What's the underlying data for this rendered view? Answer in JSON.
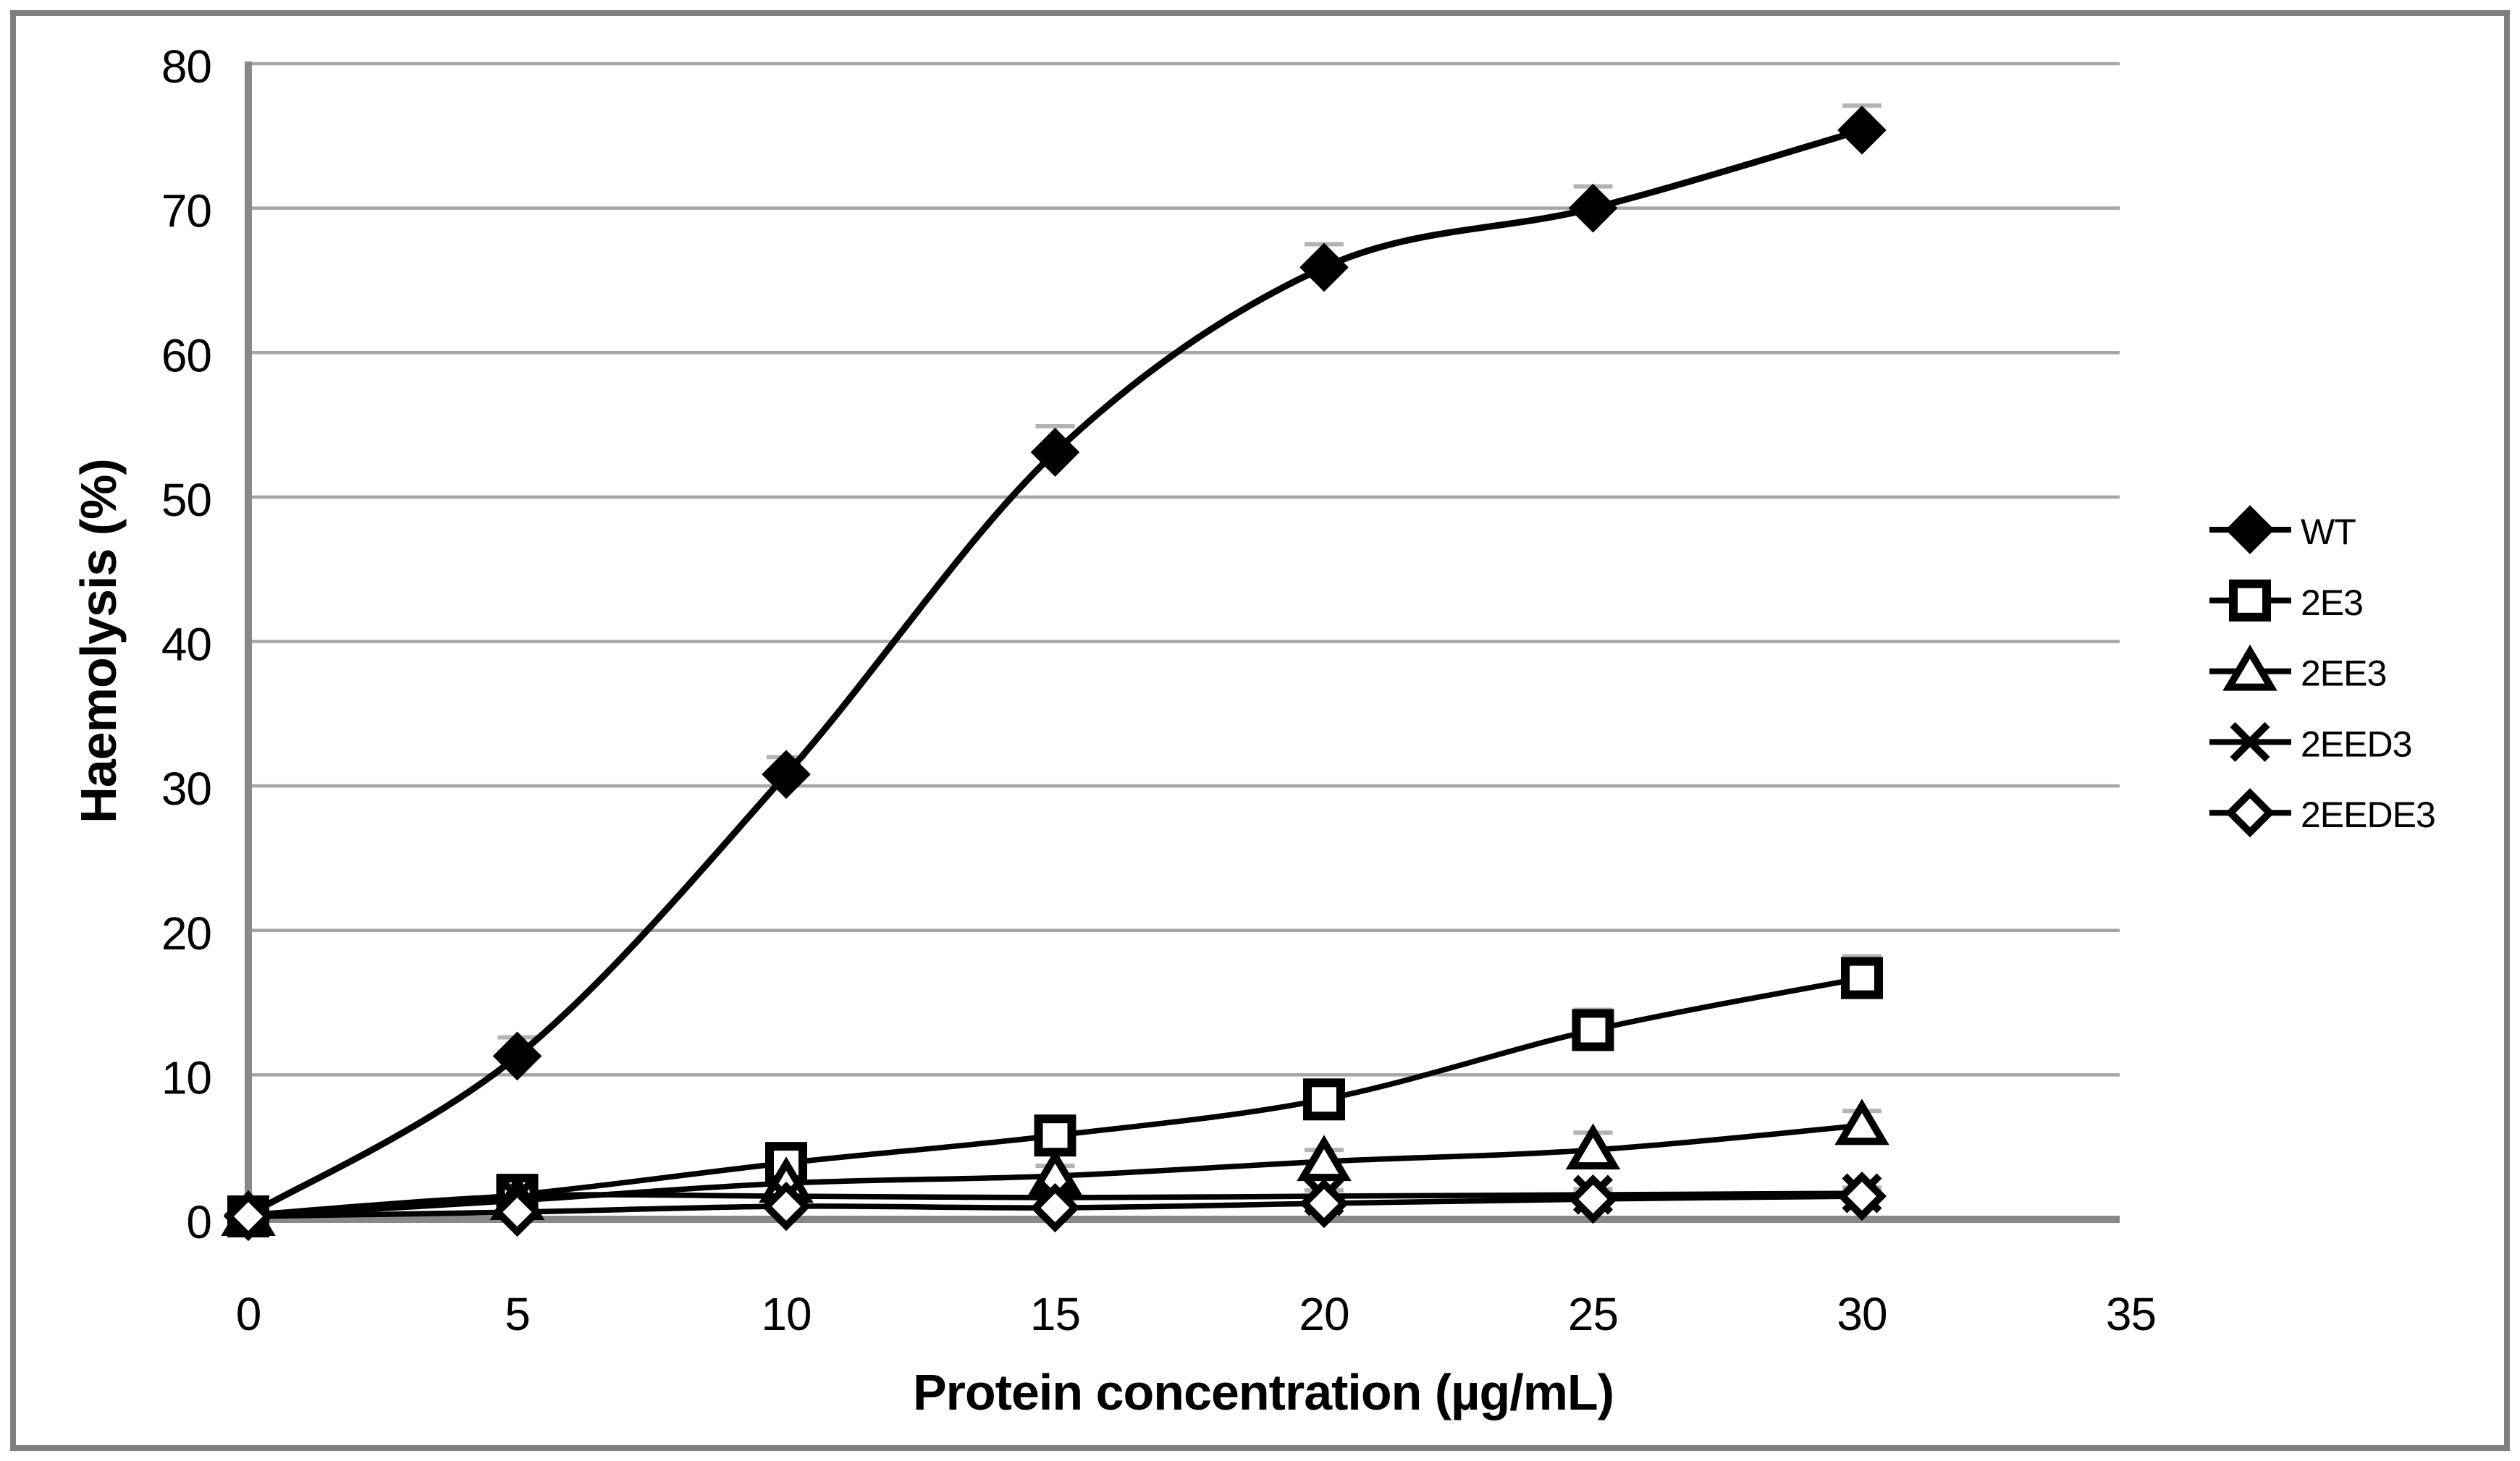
{
  "figure": {
    "background": "#ffffff",
    "border_color": "#7f7f7f"
  },
  "chart_data": {
    "type": "line",
    "title": "",
    "xlabel": "Protein concentration (µg/mL)",
    "ylabel": "Haemolysis (%)",
    "xlim": [
      0,
      35
    ],
    "ylim": [
      0,
      80
    ],
    "x_ticks": [
      "0",
      "5",
      "10",
      "15",
      "20",
      "25",
      "30",
      "35"
    ],
    "y_ticks": [
      "0",
      "10",
      "20",
      "30",
      "40",
      "50",
      "60",
      "70",
      "80"
    ],
    "grid": "horizontal",
    "legend_position": "right",
    "x": [
      0,
      5,
      10,
      15,
      20,
      25,
      30
    ],
    "series": [
      {
        "name": "WT",
        "marker": "filled-diamond",
        "values": [
          0.3,
          11.3,
          30.8,
          53.1,
          65.9,
          70.0,
          75.4
        ],
        "error": [
          0.5,
          1.3,
          1.2,
          1.8,
          1.6,
          1.5,
          1.7
        ]
      },
      {
        "name": "2E3",
        "marker": "open-square",
        "values": [
          0.2,
          1.7,
          3.9,
          5.8,
          8.3,
          13.1,
          16.7
        ],
        "error": [
          0.4,
          0.6,
          0.8,
          0.8,
          1.0,
          1.4,
          1.5
        ]
      },
      {
        "name": "2EE3",
        "marker": "open-triangle",
        "values": [
          0.2,
          1.3,
          2.5,
          3.0,
          4.0,
          4.8,
          6.5
        ],
        "error": [
          0.3,
          0.5,
          0.6,
          0.7,
          0.8,
          1.2,
          1.0
        ]
      },
      {
        "name": "2EED3",
        "marker": "x-cross",
        "values": [
          0.3,
          1.6,
          1.6,
          1.5,
          1.6,
          1.7,
          1.8
        ],
        "error": [
          0.3,
          0.5,
          0.4,
          0.4,
          0.4,
          0.4,
          0.4
        ]
      },
      {
        "name": "2EEDE3",
        "marker": "open-diamond",
        "values": [
          0.2,
          0.5,
          0.9,
          0.8,
          1.1,
          1.4,
          1.6
        ],
        "error": [
          0.3,
          0.4,
          0.4,
          0.4,
          0.4,
          0.4,
          0.4
        ]
      }
    ],
    "colors": {
      "series_line": "#000000",
      "grid": "#a6a6a6",
      "axis": "#898989",
      "error_bar": "#b3b3b3",
      "text": "#000000"
    }
  }
}
